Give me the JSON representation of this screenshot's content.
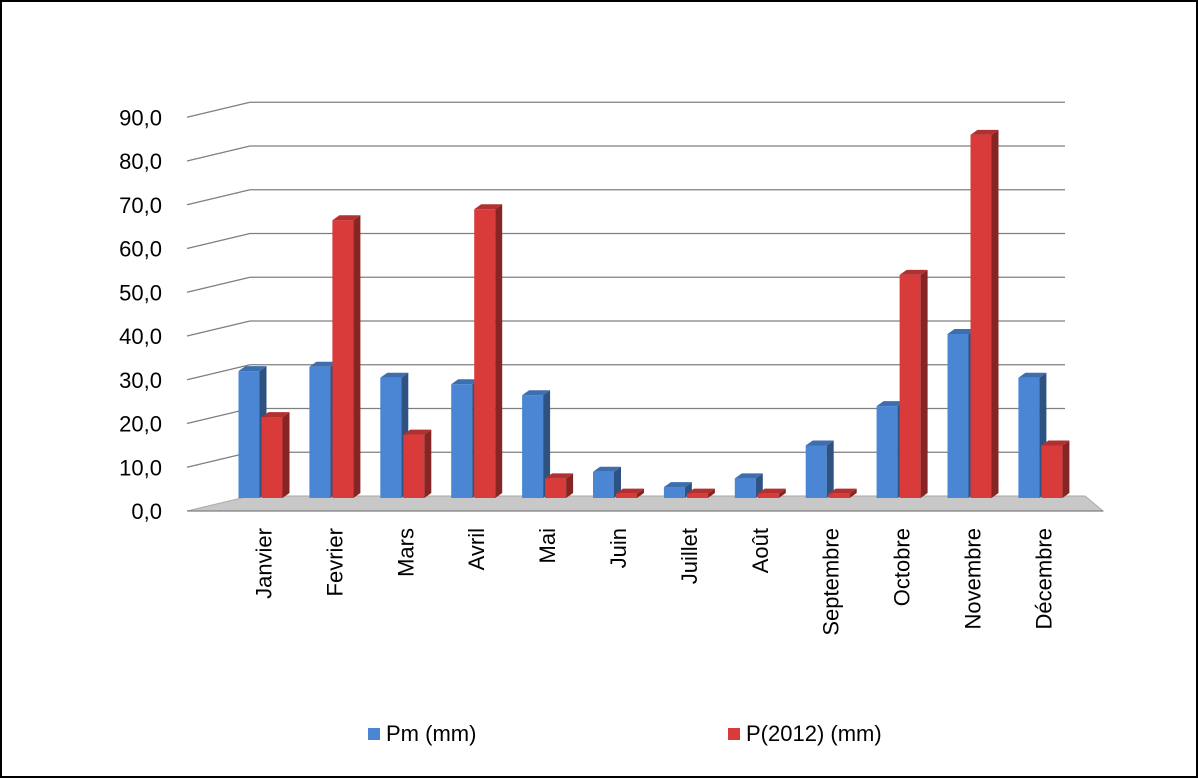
{
  "chart_data": {
    "type": "bar",
    "subtype": "3d-clustered-column",
    "title": "",
    "xlabel": "",
    "ylabel": "",
    "ylim": [
      0,
      90
    ],
    "y_ticks": [
      0,
      10,
      20,
      30,
      40,
      50,
      60,
      70,
      80,
      90
    ],
    "y_tick_labels": [
      "0,0",
      "10,0",
      "20,0",
      "30,0",
      "40,0",
      "50,0",
      "60,0",
      "70,0",
      "80,0",
      "90,0"
    ],
    "grid": true,
    "legend_position": "bottom",
    "categories": [
      "Janvier",
      "Fevrier",
      "Mars",
      "Avril",
      "Mai",
      "Juin",
      "Juillet",
      "Août",
      "Septembre",
      "Octobre",
      "Novembre",
      "Décembre"
    ],
    "series": [
      {
        "name": "Pm (mm)",
        "color": "#4a86d4",
        "values": [
          29.0,
          30.0,
          27.5,
          26.0,
          23.5,
          6.0,
          2.5,
          4.5,
          12.0,
          21.0,
          37.5,
          27.5
        ]
      },
      {
        "name": "P(2012) (mm)",
        "color": "#d93b3b",
        "values": [
          18.5,
          63.5,
          14.5,
          66.0,
          4.5,
          1.0,
          1.0,
          1.0,
          1.0,
          51.0,
          83.0,
          12.0
        ]
      }
    ]
  }
}
